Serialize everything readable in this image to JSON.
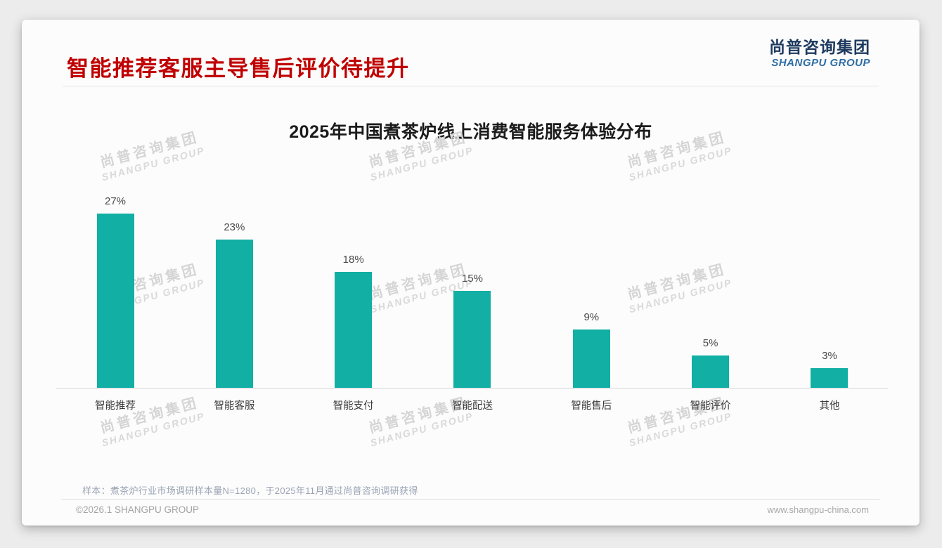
{
  "page": {
    "background": "#ececec",
    "card_background": "#fcfcfc"
  },
  "header": {
    "title": "智能推荐客服主导售后评价待提升",
    "title_color": "#c00000",
    "logo": {
      "cn": "尚普咨询集团",
      "en": "SHANGPU GROUP",
      "cn_color": "#1e3a5f",
      "en_color": "#2e6da4"
    }
  },
  "chart_data": {
    "type": "bar",
    "title": "2025年中国煮茶炉线上消费智能服务体验分布",
    "categories": [
      "智能推荐",
      "智能客服",
      "智能支付",
      "智能配送",
      "智能售后",
      "智能评价",
      "其他"
    ],
    "values": [
      27,
      23,
      18,
      15,
      9,
      5,
      3
    ],
    "value_labels": [
      "27%",
      "23%",
      "18%",
      "15%",
      "9%",
      "5%",
      "3%"
    ],
    "unit": "%",
    "bar_color": "#11afa4",
    "ylim": [
      0,
      30
    ],
    "grid": false,
    "legend_position": "none",
    "xlabel": "",
    "ylabel": ""
  },
  "watermark": {
    "line1": "尚普咨询集团",
    "line2": "SHANGPU GROUP",
    "color1": "#d5d5d5",
    "color2": "#d9d9d9"
  },
  "footnote": "样本：煮茶炉行业市场调研样本量N=1280，于2025年11月通过尚普咨询调研获得",
  "footer": {
    "left": "©2026.1 SHANGPU GROUP",
    "right": "www.shangpu-china.com"
  }
}
